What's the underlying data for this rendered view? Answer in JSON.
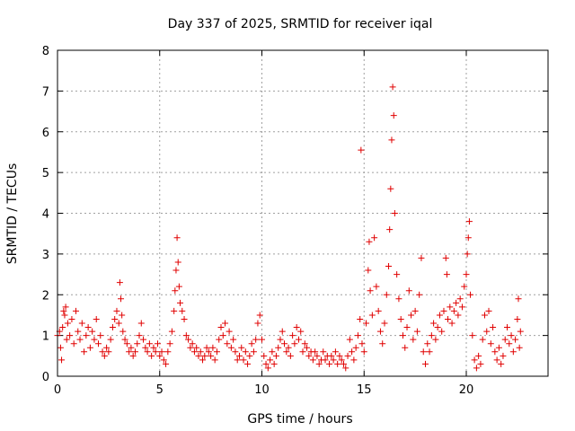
{
  "chart_data": {
    "type": "scatter",
    "title": "Day 337 of 2025, SRMTID for receiver iqal",
    "xlabel": "GPS time / hours",
    "ylabel": "SRMTID / TECUs",
    "xlim": [
      0,
      24
    ],
    "ylim": [
      0,
      8
    ],
    "xticks": [
      0,
      5,
      10,
      15,
      20
    ],
    "yticks": [
      0,
      1,
      2,
      3,
      4,
      5,
      6,
      7,
      8
    ],
    "grid": true,
    "marker": "+",
    "series_color": "#e00000",
    "series": [
      {
        "name": "SRMTID",
        "points": [
          [
            0.0,
            1.0
          ],
          [
            0.1,
            1.1
          ],
          [
            0.15,
            0.7
          ],
          [
            0.2,
            0.4
          ],
          [
            0.25,
            1.2
          ],
          [
            0.3,
            1.6
          ],
          [
            0.35,
            1.5
          ],
          [
            0.4,
            1.7
          ],
          [
            0.45,
            0.9
          ],
          [
            0.5,
            1.3
          ],
          [
            0.6,
            1.0
          ],
          [
            0.7,
            1.4
          ],
          [
            0.8,
            0.8
          ],
          [
            0.9,
            1.6
          ],
          [
            1.0,
            1.1
          ],
          [
            1.1,
            0.9
          ],
          [
            1.2,
            1.3
          ],
          [
            1.3,
            0.6
          ],
          [
            1.4,
            1.0
          ],
          [
            1.5,
            1.2
          ],
          [
            1.6,
            0.7
          ],
          [
            1.7,
            1.1
          ],
          [
            1.8,
            0.9
          ],
          [
            1.9,
            1.4
          ],
          [
            2.0,
            0.8
          ],
          [
            2.1,
            1.0
          ],
          [
            2.2,
            0.6
          ],
          [
            2.3,
            0.5
          ],
          [
            2.4,
            0.7
          ],
          [
            2.5,
            0.6
          ],
          [
            2.6,
            0.9
          ],
          [
            2.7,
            1.2
          ],
          [
            2.8,
            1.4
          ],
          [
            2.9,
            1.6
          ],
          [
            3.0,
            1.3
          ],
          [
            3.05,
            2.3
          ],
          [
            3.1,
            1.9
          ],
          [
            3.15,
            1.5
          ],
          [
            3.2,
            1.1
          ],
          [
            3.3,
            0.9
          ],
          [
            3.4,
            0.8
          ],
          [
            3.5,
            0.6
          ],
          [
            3.6,
            0.7
          ],
          [
            3.7,
            0.5
          ],
          [
            3.8,
            0.6
          ],
          [
            3.9,
            0.8
          ],
          [
            4.0,
            1.0
          ],
          [
            4.1,
            1.3
          ],
          [
            4.2,
            0.9
          ],
          [
            4.3,
            0.7
          ],
          [
            4.4,
            0.6
          ],
          [
            4.5,
            0.8
          ],
          [
            4.6,
            0.5
          ],
          [
            4.7,
            0.7
          ],
          [
            4.8,
            0.6
          ],
          [
            4.9,
            0.8
          ],
          [
            5.0,
            0.5
          ],
          [
            5.1,
            0.6
          ],
          [
            5.2,
            0.4
          ],
          [
            5.3,
            0.3
          ],
          [
            5.4,
            0.6
          ],
          [
            5.5,
            0.8
          ],
          [
            5.6,
            1.1
          ],
          [
            5.7,
            1.6
          ],
          [
            5.75,
            2.1
          ],
          [
            5.8,
            2.6
          ],
          [
            5.85,
            3.4
          ],
          [
            5.9,
            2.8
          ],
          [
            5.95,
            2.2
          ],
          [
            6.0,
            1.8
          ],
          [
            6.1,
            1.6
          ],
          [
            6.2,
            1.4
          ],
          [
            6.3,
            1.0
          ],
          [
            6.4,
            0.9
          ],
          [
            6.5,
            0.7
          ],
          [
            6.6,
            0.8
          ],
          [
            6.7,
            0.6
          ],
          [
            6.8,
            0.7
          ],
          [
            6.9,
            0.5
          ],
          [
            7.0,
            0.6
          ],
          [
            7.1,
            0.4
          ],
          [
            7.2,
            0.5
          ],
          [
            7.3,
            0.7
          ],
          [
            7.4,
            0.6
          ],
          [
            7.5,
            0.5
          ],
          [
            7.6,
            0.7
          ],
          [
            7.7,
            0.4
          ],
          [
            7.8,
            0.6
          ],
          [
            7.9,
            0.9
          ],
          [
            8.0,
            1.2
          ],
          [
            8.1,
            1.0
          ],
          [
            8.2,
            1.3
          ],
          [
            8.3,
            0.8
          ],
          [
            8.4,
            1.1
          ],
          [
            8.5,
            0.7
          ],
          [
            8.6,
            0.9
          ],
          [
            8.7,
            0.6
          ],
          [
            8.8,
            0.4
          ],
          [
            8.9,
            0.5
          ],
          [
            9.0,
            0.7
          ],
          [
            9.1,
            0.4
          ],
          [
            9.2,
            0.6
          ],
          [
            9.3,
            0.3
          ],
          [
            9.4,
            0.5
          ],
          [
            9.5,
            0.8
          ],
          [
            9.6,
            0.6
          ],
          [
            9.7,
            0.9
          ],
          [
            9.8,
            1.3
          ],
          [
            9.9,
            1.5
          ],
          [
            10.0,
            0.9
          ],
          [
            10.1,
            0.5
          ],
          [
            10.2,
            0.3
          ],
          [
            10.3,
            0.2
          ],
          [
            10.4,
            0.4
          ],
          [
            10.5,
            0.6
          ],
          [
            10.6,
            0.3
          ],
          [
            10.7,
            0.5
          ],
          [
            10.8,
            0.7
          ],
          [
            10.9,
            0.9
          ],
          [
            11.0,
            1.1
          ],
          [
            11.1,
            0.8
          ],
          [
            11.2,
            0.6
          ],
          [
            11.3,
            0.7
          ],
          [
            11.4,
            0.5
          ],
          [
            11.5,
            1.0
          ],
          [
            11.6,
            0.8
          ],
          [
            11.7,
            1.2
          ],
          [
            11.8,
            0.9
          ],
          [
            11.9,
            1.1
          ],
          [
            12.0,
            0.6
          ],
          [
            12.1,
            0.8
          ],
          [
            12.2,
            0.7
          ],
          [
            12.3,
            0.5
          ],
          [
            12.4,
            0.6
          ],
          [
            12.5,
            0.4
          ],
          [
            12.6,
            0.6
          ],
          [
            12.7,
            0.5
          ],
          [
            12.8,
            0.3
          ],
          [
            12.9,
            0.4
          ],
          [
            13.0,
            0.6
          ],
          [
            13.1,
            0.4
          ],
          [
            13.2,
            0.5
          ],
          [
            13.3,
            0.3
          ],
          [
            13.4,
            0.5
          ],
          [
            13.5,
            0.4
          ],
          [
            13.6,
            0.6
          ],
          [
            13.7,
            0.3
          ],
          [
            13.8,
            0.5
          ],
          [
            13.9,
            0.4
          ],
          [
            14.0,
            0.3
          ],
          [
            14.1,
            0.2
          ],
          [
            14.2,
            0.5
          ],
          [
            14.3,
            0.9
          ],
          [
            14.4,
            0.6
          ],
          [
            14.5,
            0.4
          ],
          [
            14.6,
            0.7
          ],
          [
            14.7,
            1.0
          ],
          [
            14.8,
            1.4
          ],
          [
            14.85,
            5.55
          ],
          [
            14.9,
            0.8
          ],
          [
            15.0,
            0.6
          ],
          [
            15.1,
            1.3
          ],
          [
            15.2,
            2.6
          ],
          [
            15.25,
            3.3
          ],
          [
            15.3,
            2.1
          ],
          [
            15.4,
            1.5
          ],
          [
            15.5,
            3.4
          ],
          [
            15.6,
            2.2
          ],
          [
            15.7,
            1.6
          ],
          [
            15.8,
            1.1
          ],
          [
            15.9,
            0.8
          ],
          [
            16.0,
            1.3
          ],
          [
            16.1,
            2.0
          ],
          [
            16.2,
            2.7
          ],
          [
            16.25,
            3.6
          ],
          [
            16.3,
            4.6
          ],
          [
            16.35,
            5.8
          ],
          [
            16.4,
            7.1
          ],
          [
            16.45,
            6.4
          ],
          [
            16.5,
            4.0
          ],
          [
            16.6,
            2.5
          ],
          [
            16.7,
            1.9
          ],
          [
            16.8,
            1.4
          ],
          [
            16.9,
            1.0
          ],
          [
            17.0,
            0.7
          ],
          [
            17.1,
            1.2
          ],
          [
            17.2,
            2.1
          ],
          [
            17.3,
            1.5
          ],
          [
            17.4,
            0.9
          ],
          [
            17.5,
            1.6
          ],
          [
            17.6,
            1.1
          ],
          [
            17.7,
            2.0
          ],
          [
            17.8,
            2.9
          ],
          [
            17.9,
            0.6
          ],
          [
            18.0,
            0.3
          ],
          [
            18.1,
            0.8
          ],
          [
            18.2,
            0.6
          ],
          [
            18.3,
            1.0
          ],
          [
            18.4,
            1.3
          ],
          [
            18.5,
            0.9
          ],
          [
            18.6,
            1.2
          ],
          [
            18.7,
            1.5
          ],
          [
            18.8,
            1.1
          ],
          [
            18.9,
            1.6
          ],
          [
            19.0,
            2.9
          ],
          [
            19.05,
            2.5
          ],
          [
            19.1,
            1.4
          ],
          [
            19.2,
            1.7
          ],
          [
            19.3,
            1.3
          ],
          [
            19.4,
            1.6
          ],
          [
            19.5,
            1.8
          ],
          [
            19.6,
            1.5
          ],
          [
            19.7,
            1.9
          ],
          [
            19.8,
            1.7
          ],
          [
            19.9,
            2.2
          ],
          [
            20.0,
            2.5
          ],
          [
            20.05,
            3.0
          ],
          [
            20.1,
            3.4
          ],
          [
            20.15,
            3.8
          ],
          [
            20.2,
            2.0
          ],
          [
            20.3,
            1.0
          ],
          [
            20.4,
            0.4
          ],
          [
            20.5,
            0.2
          ],
          [
            20.6,
            0.5
          ],
          [
            20.7,
            0.3
          ],
          [
            20.8,
            0.9
          ],
          [
            20.9,
            1.5
          ],
          [
            21.0,
            1.1
          ],
          [
            21.1,
            1.6
          ],
          [
            21.2,
            0.8
          ],
          [
            21.3,
            1.2
          ],
          [
            21.4,
            0.6
          ],
          [
            21.5,
            0.4
          ],
          [
            21.6,
            0.7
          ],
          [
            21.7,
            0.3
          ],
          [
            21.8,
            0.5
          ],
          [
            21.9,
            0.9
          ],
          [
            22.0,
            1.2
          ],
          [
            22.1,
            0.8
          ],
          [
            22.2,
            1.0
          ],
          [
            22.3,
            0.6
          ],
          [
            22.4,
            0.9
          ],
          [
            22.5,
            1.4
          ],
          [
            22.55,
            1.9
          ],
          [
            22.6,
            0.7
          ],
          [
            22.65,
            1.1
          ]
        ]
      }
    ]
  }
}
